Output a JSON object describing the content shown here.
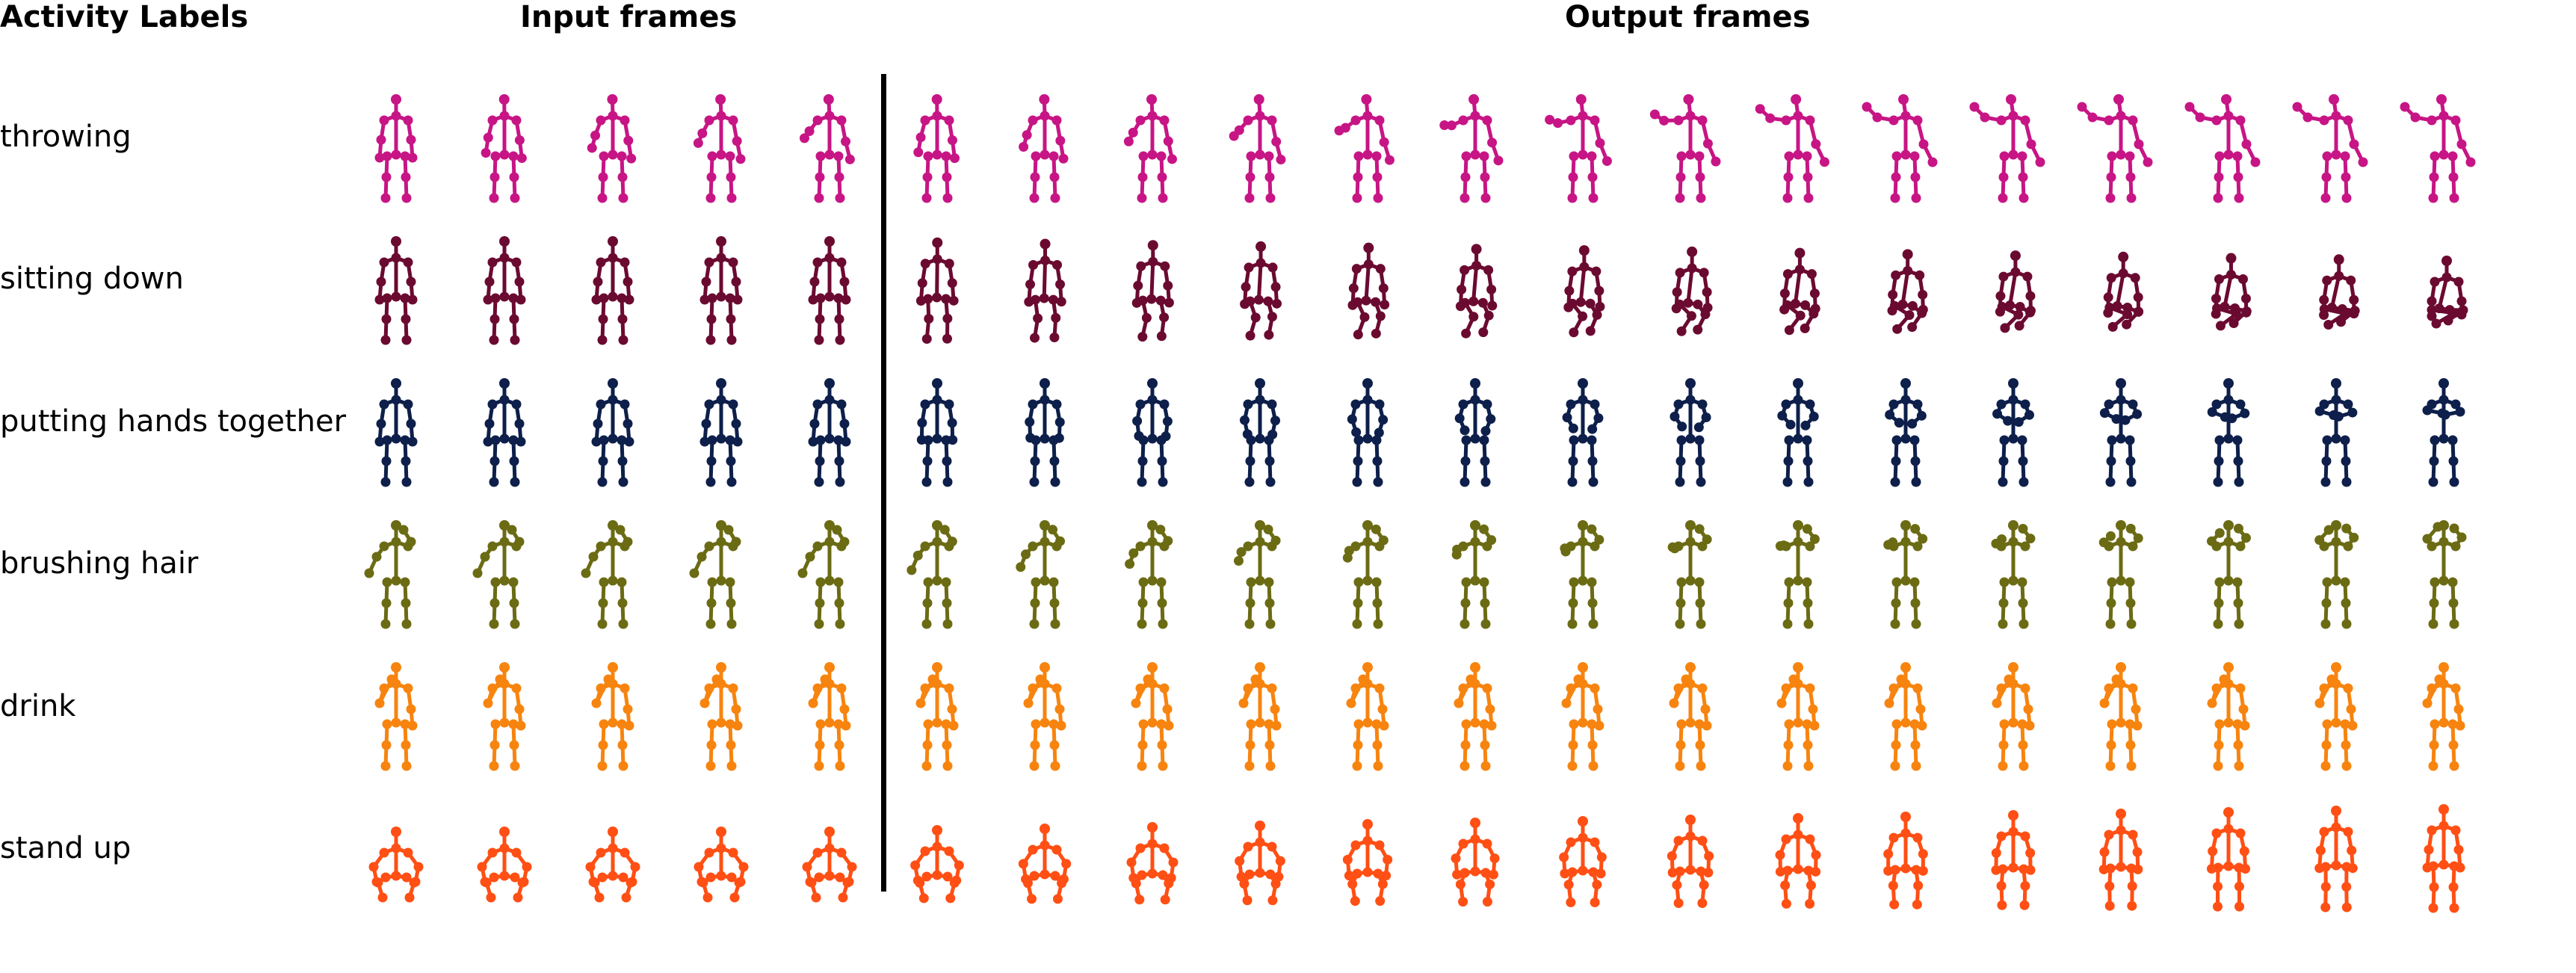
{
  "headers": {
    "activity_labels": "Activity Labels",
    "input_frames": "Input frames",
    "output_frames": "Output frames"
  },
  "frame_counts": {
    "input": 5,
    "output": 15
  },
  "rows": [
    {
      "label": "throwing",
      "color": "#C71585",
      "pose": "throw"
    },
    {
      "label": "sitting down",
      "color": "#6B0A30",
      "pose": "sit"
    },
    {
      "label": "putting hands together",
      "color": "#0D1F4A",
      "pose": "hands"
    },
    {
      "label": "brushing hair",
      "color": "#6B6B14",
      "pose": "brush"
    },
    {
      "label": "drink",
      "color": "#F7840F",
      "pose": "drink"
    },
    {
      "label": "stand up",
      "color": "#FF4F14",
      "pose": "stand"
    }
  ]
}
